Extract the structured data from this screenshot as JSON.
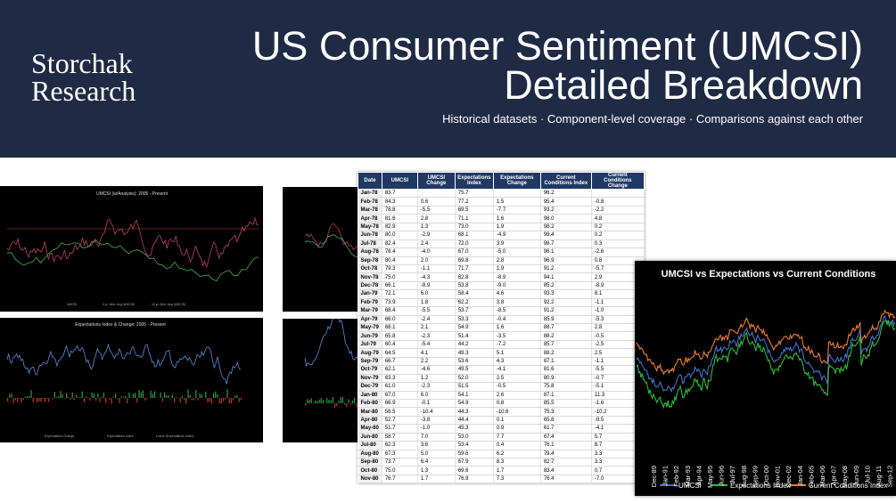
{
  "header": {
    "logo": [
      "Storchak",
      "Research"
    ],
    "title": [
      "US Consumer Sentiment (UMCSI)",
      "Detailed Breakdown"
    ],
    "subtitle": "Historical datasets · Component-level coverage · Comparisons against each other"
  },
  "charts": {
    "analysis": {
      "title": "UMCSI (w/Analysis): 2005 - Present",
      "legend": [
        "UMCSI",
        "3 yr. Mov. Avg (UMCSI)",
        "12 yr. Mov. Avg (UMCSI)"
      ]
    },
    "expectations": {
      "title": "Expectations Index & Change: 2005 - Present",
      "legend": [
        "Expectations Change",
        "Expectations Index",
        "Linear (Expectations Index)"
      ]
    },
    "comparison": {
      "title": "UMCSI vs Expectations vs Current Conditions",
      "legend": [
        "UMCSI",
        "Expectations Index",
        "Current Conditions Index"
      ],
      "x_labels": [
        "Dec-89",
        "Jan-91",
        "Feb-92",
        "Mar-93",
        "Apr-94",
        "May-95",
        "Jun-96",
        "Jul-97",
        "Aug-98",
        "Sep-99",
        "Oct-00",
        "Nov-01",
        "Dec-02",
        "Jan-04",
        "Feb-05",
        "Mar-06",
        "Apr-07",
        "May-08",
        "Jun-09",
        "Jul-10",
        "Aug-11",
        "Sep-12"
      ]
    }
  },
  "table": {
    "columns": [
      "Date",
      "UMCSI",
      "UMCSI Change",
      "Expectations Index",
      "Expectations Change",
      "Current Conditions Index",
      "Current Conditions Change"
    ],
    "rows": [
      [
        "Jan-78",
        "83.7",
        null,
        "75.7",
        null,
        "96.2",
        null
      ],
      [
        "Feb-78",
        "84.3",
        "0.6",
        "77.2",
        "1.5",
        "95.4",
        "-0.8"
      ],
      [
        "Mar-78",
        "78.8",
        "-5.5",
        "69.5",
        "-7.7",
        "93.2",
        "-2.2"
      ],
      [
        "Apr-78",
        "81.6",
        "2.8",
        "71.1",
        "1.6",
        "98.0",
        "4.8"
      ],
      [
        "May-78",
        "82.9",
        "1.3",
        "73.0",
        "1.9",
        "98.2",
        "0.2"
      ],
      [
        "Jun-78",
        "80.0",
        "-2.9",
        "68.1",
        "-4.9",
        "98.4",
        "0.2"
      ],
      [
        "Jul-78",
        "82.4",
        "2.4",
        "72.0",
        "3.9",
        "98.7",
        "0.3"
      ],
      [
        "Aug-78",
        "78.4",
        "-4.0",
        "67.0",
        "-5.0",
        "96.1",
        "-2.6"
      ],
      [
        "Sep-78",
        "80.4",
        "2.0",
        "69.8",
        "2.8",
        "96.9",
        "0.8"
      ],
      [
        "Oct-78",
        "79.3",
        "-1.1",
        "71.7",
        "1.9",
        "91.2",
        "-5.7"
      ],
      [
        "Nov-78",
        "75.0",
        "-4.3",
        "62.8",
        "-8.9",
        "94.1",
        "2.9"
      ],
      [
        "Dec-78",
        "66.1",
        "-8.9",
        "53.8",
        "-9.0",
        "85.2",
        "-8.9"
      ],
      [
        "Jan-79",
        "72.1",
        "6.0",
        "58.4",
        "4.6",
        "93.3",
        "8.1"
      ],
      [
        "Feb-79",
        "73.9",
        "1.8",
        "62.2",
        "3.8",
        "92.2",
        "-1.1"
      ],
      [
        "Mar-79",
        "68.4",
        "-5.5",
        "53.7",
        "-8.5",
        "91.2",
        "-1.0"
      ],
      [
        "Apr-79",
        "66.0",
        "-2.4",
        "53.3",
        "-0.4",
        "85.9",
        "-5.3"
      ],
      [
        "May-79",
        "68.1",
        "2.1",
        "54.9",
        "1.6",
        "88.7",
        "2.8"
      ],
      [
        "Jun-79",
        "65.8",
        "-2.3",
        "51.4",
        "-3.5",
        "88.2",
        "-0.5"
      ],
      [
        "Jul-79",
        "60.4",
        "-5.4",
        "44.2",
        "-7.2",
        "85.7",
        "-2.5"
      ],
      [
        "Aug-79",
        "64.5",
        "4.1",
        "49.3",
        "5.1",
        "88.2",
        "2.5"
      ],
      [
        "Sep-79",
        "66.7",
        "2.2",
        "53.6",
        "4.3",
        "87.1",
        "-1.1"
      ],
      [
        "Oct-79",
        "62.1",
        "-4.6",
        "49.5",
        "-4.1",
        "81.6",
        "-5.5"
      ],
      [
        "Nov-79",
        "63.3",
        "1.2",
        "52.0",
        "2.5",
        "80.9",
        "-0.7"
      ],
      [
        "Dec-79",
        "61.0",
        "-2.3",
        "51.5",
        "-0.5",
        "75.8",
        "-5.1"
      ],
      [
        "Jan-80",
        "67.0",
        "6.0",
        "54.1",
        "2.6",
        "87.1",
        "11.3"
      ],
      [
        "Feb-80",
        "66.9",
        "-0.1",
        "54.9",
        "0.8",
        "85.5",
        "-1.6"
      ],
      [
        "Mar-80",
        "56.5",
        "-10.4",
        "44.3",
        "-10.6",
        "75.3",
        "-10.2"
      ],
      [
        "Apr-80",
        "52.7",
        "-3.8",
        "44.4",
        "0.1",
        "65.8",
        "-9.5"
      ],
      [
        "May-80",
        "51.7",
        "-1.0",
        "45.3",
        "0.9",
        "61.7",
        "-4.1"
      ],
      [
        "Jun-80",
        "58.7",
        "7.0",
        "53.0",
        "7.7",
        "67.4",
        "5.7"
      ],
      [
        "Jul-80",
        "62.3",
        "3.6",
        "53.4",
        "0.4",
        "76.1",
        "8.7"
      ],
      [
        "Aug-80",
        "67.3",
        "5.0",
        "59.6",
        "6.2",
        "79.4",
        "3.3"
      ],
      [
        "Sep-80",
        "73.7",
        "6.4",
        "67.9",
        "8.3",
        "82.7",
        "3.3"
      ],
      [
        "Oct-80",
        "75.0",
        "1.3",
        "69.6",
        "1.7",
        "83.4",
        "0.7"
      ],
      [
        "Nov-80",
        "76.7",
        "1.7",
        "76.9",
        "7.3",
        "76.4",
        "-7.0"
      ]
    ]
  }
}
